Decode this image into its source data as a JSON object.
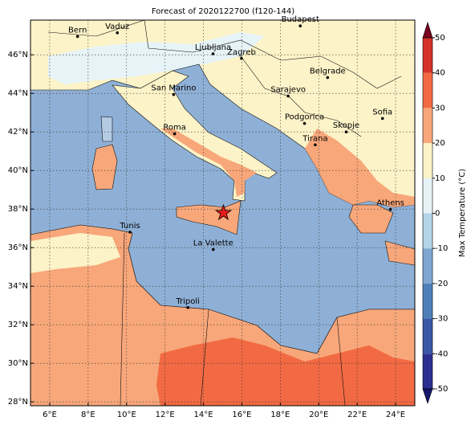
{
  "map": {
    "title": "Forecast of 2020122700 (f120-144)",
    "xlim": [
      5,
      25
    ],
    "ylim": [
      27.8,
      47.8
    ],
    "xticks": [
      {
        "value": 6,
        "label": "6°E"
      },
      {
        "value": 8,
        "label": "8°E"
      },
      {
        "value": 10,
        "label": "10°E"
      },
      {
        "value": 12,
        "label": "12°E"
      },
      {
        "value": 14,
        "label": "14°E"
      },
      {
        "value": 16,
        "label": "16°E"
      },
      {
        "value": 18,
        "label": "18°E"
      },
      {
        "value": 20,
        "label": "20°E"
      },
      {
        "value": 22,
        "label": "22°E"
      },
      {
        "value": 24,
        "label": "24°E"
      }
    ],
    "yticks": [
      {
        "value": 28,
        "label": "28°N"
      },
      {
        "value": 30,
        "label": "30°N"
      },
      {
        "value": 32,
        "label": "32°N"
      },
      {
        "value": 34,
        "label": "34°N"
      },
      {
        "value": 36,
        "label": "36°N"
      },
      {
        "value": 38,
        "label": "38°N"
      },
      {
        "value": 40,
        "label": "40°N"
      },
      {
        "value": 42,
        "label": "42°N"
      },
      {
        "value": 44,
        "label": "44°N"
      },
      {
        "value": 46,
        "label": "46°N"
      }
    ],
    "grid": true,
    "cities": [
      {
        "name": "Bern",
        "lon": 7.45,
        "lat": 46.95
      },
      {
        "name": "Vaduz",
        "lon": 9.52,
        "lat": 47.14
      },
      {
        "name": "Budapest",
        "lon": 19.04,
        "lat": 47.5
      },
      {
        "name": "Ljubljana",
        "lon": 14.5,
        "lat": 46.05
      },
      {
        "name": "Zagreb",
        "lon": 15.98,
        "lat": 45.81
      },
      {
        "name": "Belgrade",
        "lon": 20.46,
        "lat": 44.82
      },
      {
        "name": "San Marino",
        "lon": 12.45,
        "lat": 43.94
      },
      {
        "name": "Sarajevo",
        "lon": 18.41,
        "lat": 43.86
      },
      {
        "name": "Sofia",
        "lon": 23.32,
        "lat": 42.7
      },
      {
        "name": "Roma",
        "lon": 12.5,
        "lat": 41.9
      },
      {
        "name": "Podgorica",
        "lon": 19.26,
        "lat": 42.44
      },
      {
        "name": "Skopje",
        "lon": 21.43,
        "lat": 42.0
      },
      {
        "name": "Tirana",
        "lon": 19.82,
        "lat": 41.33
      },
      {
        "name": "Athens",
        "lon": 23.73,
        "lat": 37.98
      },
      {
        "name": "Tunis",
        "lon": 10.18,
        "lat": 36.8
      },
      {
        "name": "La Valette",
        "lon": 14.51,
        "lat": 35.9
      },
      {
        "name": "Tripoli",
        "lon": 13.19,
        "lat": 32.89
      }
    ],
    "marker": {
      "lon": 15.04,
      "lat": 37.8,
      "color": "#e41a1c"
    },
    "colorbar": {
      "label": "Max Temperature (°C)",
      "ticks": [
        -50,
        -40,
        -30,
        -20,
        -10,
        0,
        10,
        20,
        30,
        40,
        50
      ],
      "colors": [
        "#2b2f8f",
        "#3a57a6",
        "#4f7fb9",
        "#7fa7d0",
        "#b4d4e8",
        "#e6f3f7",
        "#fcf3c8",
        "#f8a77a",
        "#f26a43",
        "#d4322a",
        "#a50026"
      ],
      "under_color": "#14186b",
      "over_color": "#7a0020"
    }
  }
}
